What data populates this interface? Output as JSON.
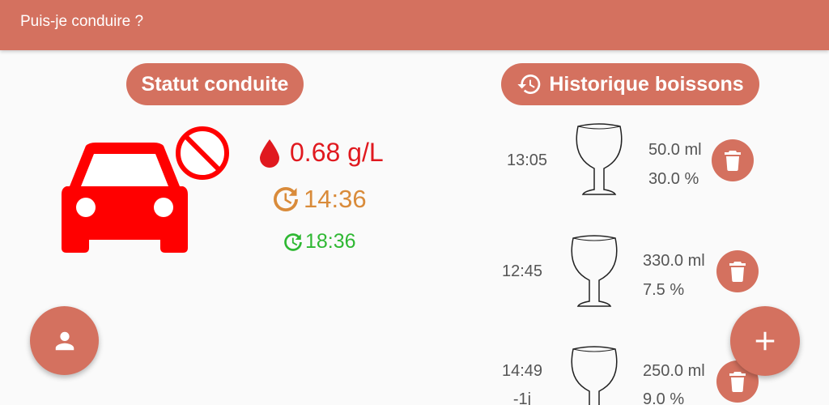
{
  "appbar": {
    "title": "Puis-je conduire ?"
  },
  "status": {
    "title": "Statut conduite",
    "bac": "0.68 g/L",
    "time_a": "14:36",
    "time_b": "18:36",
    "colors": {
      "bac": "#e0191f",
      "time_a": "#d98b3a",
      "time_b": "#2fb833",
      "car": "#ff0000"
    }
  },
  "history": {
    "title": "Historique boissons",
    "drinks": [
      {
        "time": "13:05",
        "volume": "50.0 ml",
        "percent": "30.0 %",
        "icon": "wine-glass-icon"
      },
      {
        "time": "12:45",
        "volume": "330.0 ml",
        "percent": "7.5 %",
        "icon": "wine-glass-icon"
      },
      {
        "time": "14:49",
        "day": "-1j",
        "volume": "250.0 ml",
        "percent": "9.0 %",
        "icon": "wine-glass-icon"
      }
    ]
  },
  "theme": {
    "accent": "#d4715f"
  }
}
